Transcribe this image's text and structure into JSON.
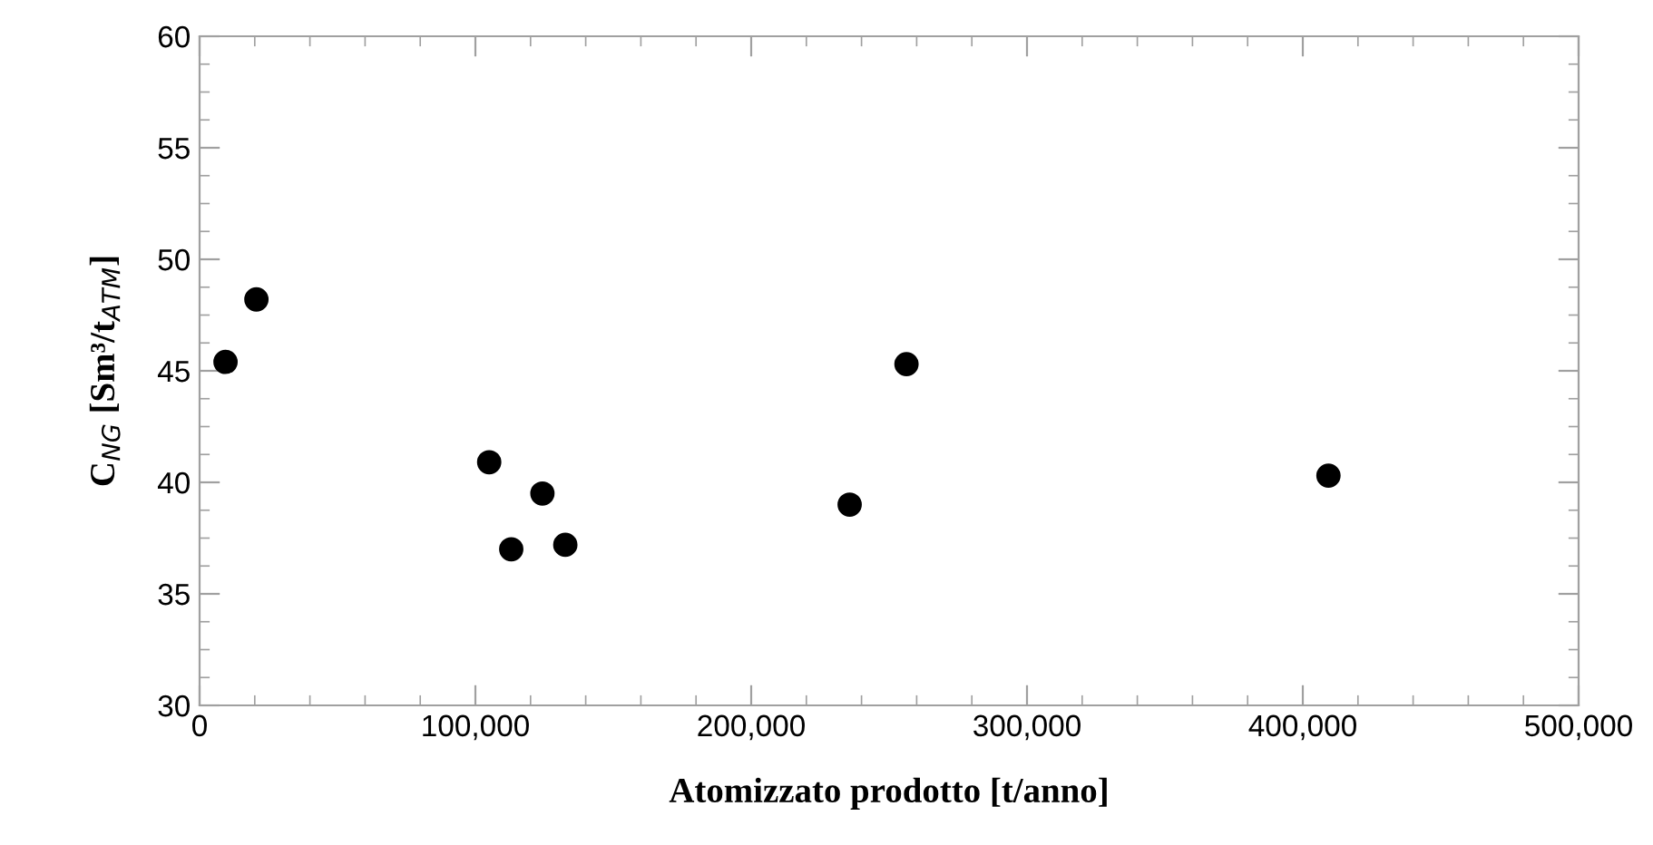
{
  "chart_data": {
    "type": "scatter",
    "xlabel": "Atomizzato prodotto [t/anno]",
    "ylabel": "C$_{NG}$ [Sm³/t$_{ATM}$]",
    "x": [
      9400,
      20600,
      105000,
      113000,
      124300,
      132600,
      235700,
      256300,
      409300
    ],
    "series": [
      {
        "color": "#000000",
        "values": [
          45.4,
          48.2,
          40.9,
          37.0,
          39.5,
          37.2,
          39.0,
          45.3,
          40.3
        ]
      }
    ],
    "xlim": [
      0,
      500000
    ],
    "ylim": [
      30,
      60
    ],
    "xticks": [
      0,
      {
        "value": 100000,
        "label": "100,000"
      },
      {
        "value": 200000,
        "label": "200,000"
      },
      {
        "value": 300000,
        "label": "300,000"
      },
      {
        "value": 400000,
        "label": "400,000"
      },
      {
        "value": 500000,
        "label": "500,000"
      }
    ],
    "yticks": [
      30,
      35,
      40,
      45,
      50,
      55,
      60
    ],
    "marker": "circle",
    "grid": false,
    "legend": false
  }
}
